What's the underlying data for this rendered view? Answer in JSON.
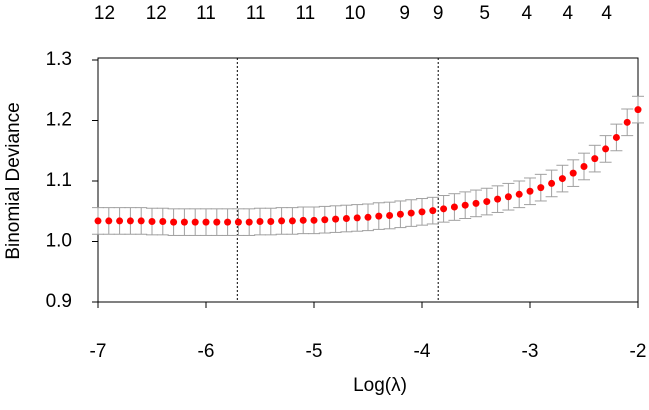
{
  "chart_data": {
    "type": "scatter",
    "x_label": "Log(λ)",
    "y_label": "Binomial Deviance",
    "x": [
      -7.0,
      -6.9,
      -6.8,
      -6.7,
      -6.6,
      -6.5,
      -6.4,
      -6.3,
      -6.2,
      -6.1,
      -6.0,
      -5.9,
      -5.8,
      -5.7,
      -5.6,
      -5.5,
      -5.4,
      -5.3,
      -5.2,
      -5.1,
      -5.0,
      -4.9,
      -4.8,
      -4.7,
      -4.6,
      -4.5,
      -4.4,
      -4.3,
      -4.2,
      -4.1,
      -4.0,
      -3.9,
      -3.8,
      -3.7,
      -3.6,
      -3.5,
      -3.4,
      -3.3,
      -3.2,
      -3.1,
      -3.0,
      -2.9,
      -2.8,
      -2.7,
      -2.6,
      -2.5,
      -2.4,
      -2.3,
      -2.2,
      -2.1,
      -2.0
    ],
    "values": [
      1.034,
      1.034,
      1.034,
      1.034,
      1.034,
      1.033,
      1.033,
      1.032,
      1.032,
      1.032,
      1.032,
      1.032,
      1.032,
      1.032,
      1.032,
      1.033,
      1.033,
      1.034,
      1.034,
      1.035,
      1.035,
      1.036,
      1.037,
      1.038,
      1.039,
      1.04,
      1.042,
      1.043,
      1.045,
      1.047,
      1.049,
      1.051,
      1.054,
      1.057,
      1.06,
      1.063,
      1.066,
      1.07,
      1.074,
      1.078,
      1.083,
      1.089,
      1.096,
      1.104,
      1.113,
      1.124,
      1.137,
      1.153,
      1.172,
      1.197,
      1.218
    ],
    "error": 0.022,
    "color": "#ff0000",
    "error_color": "#a0a0a0",
    "xlim": [
      -7,
      -2
    ],
    "ylim": [
      0.9,
      1.3
    ],
    "xticks": [
      -7,
      -6,
      -5,
      -4,
      -3,
      -2
    ],
    "yticks": [
      0.9,
      {
        "value": 1.0,
        "label": "1.0"
      },
      1.1,
      1.2,
      1.3
    ],
    "vlines": [
      -5.71,
      -3.85
    ],
    "top_axis": {
      "positions": [
        -6.94,
        -6.46,
        -6.0,
        -5.54,
        -5.08,
        -4.62,
        -4.16,
        -3.85,
        -3.42,
        -3.03,
        -2.65,
        -2.29
      ],
      "labels": [
        "12",
        "12",
        "11",
        "11",
        "11",
        "10",
        "9",
        "9",
        "5",
        "4",
        "4",
        "4"
      ]
    }
  }
}
